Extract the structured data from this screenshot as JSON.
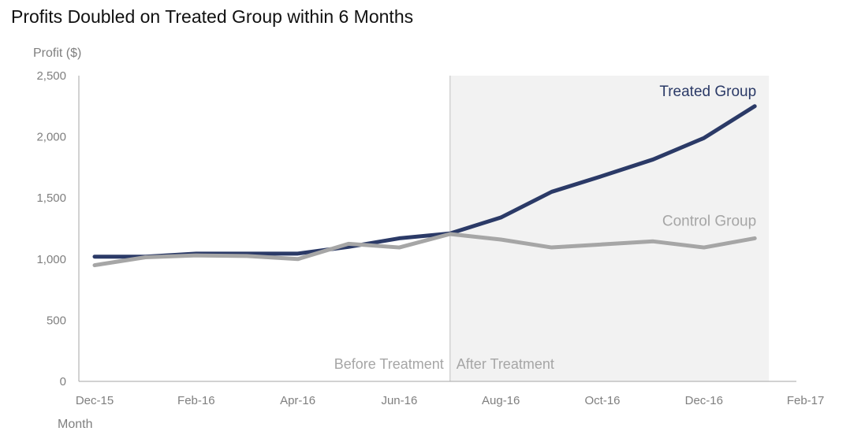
{
  "chart_data": {
    "type": "line",
    "title": "Profits Doubled on Treated Group within 6 Months",
    "ylabel": "Profit ($)",
    "xlabel": "Month",
    "ylim": [
      0,
      2500
    ],
    "yticks": [
      "0",
      "500",
      "1,000",
      "1,500",
      "2,000",
      "2,500"
    ],
    "ytick_values": [
      0,
      500,
      1000,
      1500,
      2000,
      2500
    ],
    "x_categories": [
      "Dec-15",
      "Jan-16",
      "Feb-16",
      "Mar-16",
      "Apr-16",
      "May-16",
      "Jun-16",
      "Jul-16",
      "Aug-16",
      "Sep-16",
      "Oct-16",
      "Nov-16",
      "Dec-16",
      "Jan-17",
      "Feb-17"
    ],
    "xticks": [
      "Dec-15",
      "Feb-16",
      "Apr-16",
      "Jun-16",
      "Aug-16",
      "Oct-16",
      "Dec-16",
      "Feb-17"
    ],
    "grid": false,
    "series": [
      {
        "name": "Treated Group",
        "color": "#2b3a67",
        "x": [
          "Dec-15",
          "Jan-16",
          "Feb-16",
          "Mar-16",
          "Apr-16",
          "May-16",
          "Jun-16",
          "Jul-16",
          "Aug-16",
          "Sep-16",
          "Oct-16",
          "Nov-16",
          "Dec-16",
          "Jan-17"
        ],
        "values": [
          1020,
          1020,
          1045,
          1045,
          1045,
          1100,
          1170,
          1210,
          1340,
          1550,
          1680,
          1815,
          1990,
          2250
        ]
      },
      {
        "name": "Control Group",
        "color": "#a6a6a6",
        "x": [
          "Dec-15",
          "Jan-16",
          "Feb-16",
          "Mar-16",
          "Apr-16",
          "May-16",
          "Jun-16",
          "Jul-16",
          "Aug-16",
          "Sep-16",
          "Oct-16",
          "Nov-16",
          "Dec-16",
          "Jan-17"
        ],
        "values": [
          950,
          1015,
          1030,
          1025,
          1000,
          1125,
          1095,
          1205,
          1160,
          1095,
          1120,
          1145,
          1095,
          1170
        ]
      }
    ],
    "annotations": {
      "before": "Before Treatment",
      "after": "After Treatment",
      "treatment_month": "Jul-16"
    },
    "shaded_region": {
      "from": "Jul-16",
      "to": "Jan-17",
      "color": "#f2f2f2"
    },
    "axis_color": "#a6a6a6",
    "tick_label_color": "#7f7f7f"
  }
}
